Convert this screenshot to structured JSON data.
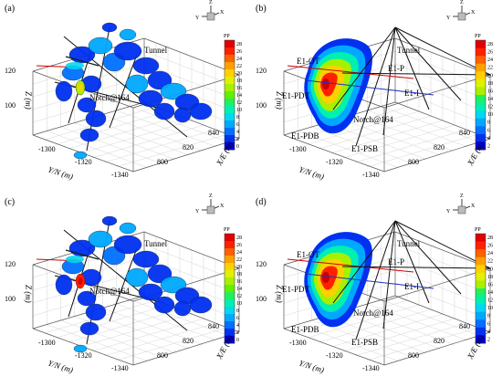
{
  "figure": {
    "panels": [
      {
        "letter": "(a)",
        "kind": "discs",
        "axis_labels": {
          "z": "Z (m)",
          "y": "Y/N (m)",
          "x": "X/E (m)"
        },
        "z_ticks": [
          "120",
          "100"
        ],
        "y_ticks": [
          "-1300",
          "-1320",
          "-1340"
        ],
        "x_ticks": [
          "840",
          "820",
          "800"
        ],
        "triad": {
          "z": "Z",
          "y": "Y",
          "x": "X"
        },
        "annotations": [
          "Tunnel",
          "Notch@164"
        ],
        "colorbar": {
          "title": "PP",
          "ticks": [
            "28",
            "26",
            "24",
            "22",
            "20",
            "18",
            "16",
            "14",
            "12",
            "10",
            "8",
            "6",
            "4",
            "2",
            "0"
          ]
        }
      },
      {
        "letter": "(b)",
        "kind": "contour",
        "axis_labels": {
          "z": "Z (m)",
          "y": "Y/N (m)",
          "x": "X/E (m)"
        },
        "z_ticks": [
          "120",
          "100"
        ],
        "y_ticks": [
          "-1300",
          "-1320",
          "-1340"
        ],
        "x_ticks": [
          "840",
          "820",
          "800"
        ],
        "triad": {
          "z": "Z",
          "y": "Y",
          "x": "X"
        },
        "annotations": [
          "Tunnel",
          "E1-OT",
          "E1-P",
          "E1-PDT",
          "E1-I",
          "Notch@164",
          "E1-PDB",
          "E1-PSB"
        ],
        "colorbar": {
          "title": "PP",
          "ticks": [
            "28",
            "26",
            "24",
            "22",
            "20",
            "18",
            "16",
            "14",
            "12",
            "10",
            "8",
            "6",
            "4",
            "2"
          ]
        }
      },
      {
        "letter": "(c)",
        "kind": "discs",
        "axis_labels": {
          "z": "Z (m)",
          "y": "Y/N (m)",
          "x": "X/E (m)"
        },
        "z_ticks": [
          "120",
          "100"
        ],
        "y_ticks": [
          "-1300",
          "-1320",
          "-1340"
        ],
        "x_ticks": [
          "840",
          "820",
          "800"
        ],
        "triad": {
          "z": "Z",
          "y": "Y",
          "x": "X"
        },
        "annotations": [
          "Tunnel",
          "Notch@164"
        ],
        "colorbar": {
          "title": "PP",
          "ticks": [
            "28",
            "26",
            "24",
            "22",
            "20",
            "18",
            "16",
            "14",
            "12",
            "10",
            "8",
            "6",
            "4",
            "2",
            "0"
          ]
        }
      },
      {
        "letter": "(d)",
        "kind": "contour",
        "axis_labels": {
          "z": "Z (m)",
          "y": "Y/N (m)",
          "x": "X/E (m)"
        },
        "z_ticks": [
          "120",
          "100"
        ],
        "y_ticks": [
          "-1300",
          "-1320",
          "-1340"
        ],
        "x_ticks": [
          "840",
          "820",
          "800"
        ],
        "triad": {
          "z": "Z",
          "y": "Y",
          "x": "X"
        },
        "annotations": [
          "Tunnel",
          "E1-OT",
          "E1-P",
          "E1-PDT",
          "E1-I",
          "Notch@164",
          "E1-PDB",
          "E1-PSB"
        ],
        "colorbar": {
          "title": "PP",
          "ticks": [
            "28",
            "26",
            "24",
            "22",
            "20",
            "18",
            "16",
            "14",
            "12",
            "10",
            "8",
            "6",
            "4",
            "2"
          ]
        }
      }
    ]
  },
  "chart_data": [
    {
      "type": "other",
      "panel": "(a)",
      "title": "",
      "colorbar_label": "PP",
      "zlabel": "Z (m)",
      "ylabel": "Y/N (m)",
      "xlabel": "X/E (m)",
      "color_range": [
        0,
        28
      ]
    },
    {
      "type": "other",
      "panel": "(b)",
      "title": "",
      "colorbar_label": "PP",
      "zlabel": "Z (m)",
      "ylabel": "Y/N (m)",
      "xlabel": "X/E (m)",
      "color_range": [
        2,
        28
      ]
    },
    {
      "type": "other",
      "panel": "(c)",
      "title": "",
      "colorbar_label": "PP",
      "zlabel": "Z (m)",
      "ylabel": "Y/N (m)",
      "xlabel": "X/E (m)",
      "color_range": [
        0,
        28
      ]
    },
    {
      "type": "other",
      "panel": "(d)",
      "title": "",
      "colorbar_label": "PP",
      "zlabel": "Z (m)",
      "ylabel": "Y/N (m)",
      "xlabel": "X/E (m)",
      "color_range": [
        2,
        28
      ]
    }
  ],
  "colors": {
    "scale": [
      "#0000d8",
      "#0030f0",
      "#0070ff",
      "#00a8ff",
      "#00d8f0",
      "#00f0b0",
      "#20f060",
      "#60f000",
      "#a8f000",
      "#e0f000",
      "#ffd000",
      "#ffa000",
      "#ff6000",
      "#ff2000",
      "#e00000"
    ]
  }
}
